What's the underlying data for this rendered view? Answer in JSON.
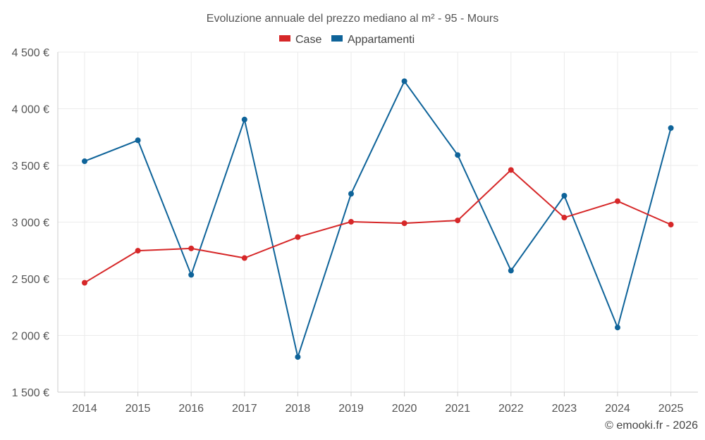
{
  "chart_data": {
    "type": "line",
    "title": "Evoluzione annuale del prezzo mediano al m² - 95 - Mours",
    "categories": [
      "2014",
      "2015",
      "2016",
      "2017",
      "2018",
      "2019",
      "2020",
      "2021",
      "2022",
      "2023",
      "2024",
      "2025"
    ],
    "series": [
      {
        "name": "Case",
        "color": "#d62728",
        "values": [
          2465,
          2748,
          2768,
          2683,
          2868,
          3003,
          2990,
          3015,
          3460,
          3040,
          3185,
          2978
        ]
      },
      {
        "name": "Appartamenti",
        "color": "#0e6399",
        "values": [
          3537,
          3722,
          2535,
          3905,
          1810,
          3250,
          4243,
          3592,
          2572,
          3233,
          2070,
          3830
        ]
      }
    ],
    "ylim": [
      1500,
      4500
    ],
    "yticks": [
      1500,
      2000,
      2500,
      3000,
      3500,
      4000,
      4500
    ],
    "ytick_labels": [
      "1 500 €",
      "2 000 €",
      "2 500 €",
      "3 000 €",
      "3 500 €",
      "4 000 €",
      "4 500 €"
    ],
    "xlabel": "",
    "ylabel": "",
    "legend_position": "top-center",
    "grid": true
  },
  "footer": "© emooki.fr - 2026"
}
